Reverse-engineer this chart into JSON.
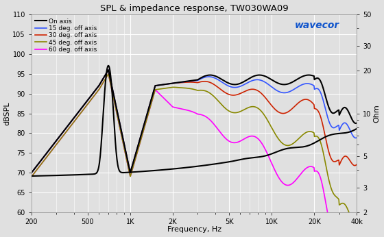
{
  "title": "SPL & impedance response, TW030WA09",
  "ylabel_left": "dBSPL",
  "ylabel_right": "Ohm",
  "xlabel": "Frequency, Hz",
  "freq_min": 200,
  "freq_max": 40000,
  "spl_min": 60,
  "spl_max": 110,
  "ohm_min": 2,
  "ohm_max": 50,
  "background_color": "#e0e0e0",
  "grid_color": "#ffffff",
  "legend": [
    "On axis",
    "15 deg. off axis",
    "30 deg. off axis",
    "45 deg. off axis",
    "60 deg. off axis"
  ],
  "colors": [
    "#000000",
    "#3355ff",
    "#cc2200",
    "#888800",
    "#ff00ff"
  ],
  "line_widths": [
    1.5,
    1.2,
    1.2,
    1.2,
    1.2
  ],
  "imp_ticks": [
    2,
    3,
    5,
    10,
    20,
    30,
    50
  ],
  "spl_yticks": [
    60,
    65,
    70,
    75,
    80,
    85,
    90,
    95,
    100,
    105,
    110
  ],
  "xticks": [
    200,
    500,
    1000,
    2000,
    5000,
    10000,
    20000,
    40000
  ],
  "xlabels": [
    "200",
    "500",
    "1K",
    "2K",
    "5K",
    "10K",
    "20K",
    "40k"
  ]
}
